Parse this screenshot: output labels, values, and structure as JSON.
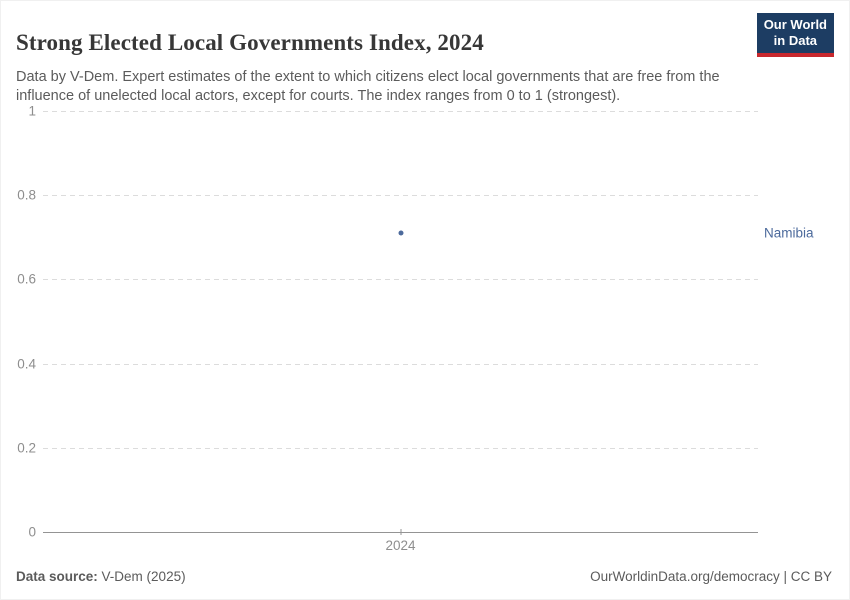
{
  "header": {
    "title": "Strong Elected Local Governments Index, 2024",
    "subtitle": "Data by V-Dem. Expert estimates of the extent to which citizens elect local governments that are free from the influence of unelected local actors, except for courts. The index ranges from 0 to 1 (strongest).",
    "logo": {
      "line1": "Our World",
      "line2": "in Data",
      "bg_color": "#1d3d63",
      "stripe_color": "#c8282d"
    }
  },
  "chart_data": {
    "type": "scatter",
    "title": "Strong Elected Local Governments Index, 2024",
    "x": [
      2024
    ],
    "xtick_labels": [
      "2024"
    ],
    "series": [
      {
        "name": "Namibia",
        "values": [
          0.71
        ],
        "color": "#4c6a9c"
      }
    ],
    "xlabel": "",
    "ylabel": "",
    "ylim": [
      0,
      1
    ],
    "yticks": [
      0,
      0.2,
      0.4,
      0.6,
      0.8,
      1
    ],
    "ytick_labels": [
      "0",
      "0.2",
      "0.4",
      "0.6",
      "0.8",
      "1"
    ],
    "grid": "horizontal-dashed",
    "legend_position": "entity-label-right-of-point"
  },
  "colors": {
    "point": "#4c6a9c",
    "entity_label": "#4c6a9c",
    "gridline": "#dcdcdc",
    "axis_line": "#949494",
    "tick_label": "#8e8e8e",
    "title_text": "#373737",
    "subtitle_text": "#5b5b5b",
    "footer_text": "#5b5b5b"
  },
  "footer": {
    "source_label": "Data source:",
    "source_value": "V-Dem (2025)",
    "credit": "OurWorldinData.org/democracy | CC BY"
  }
}
